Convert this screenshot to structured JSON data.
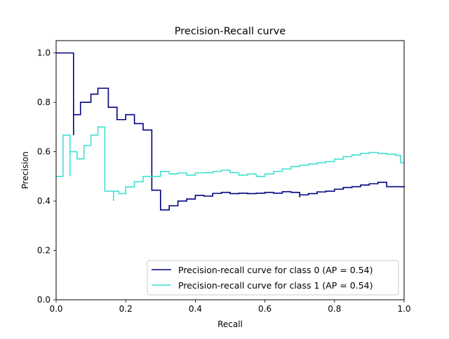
{
  "chart_data": {
    "type": "line",
    "step": "post",
    "title": "Precision-Recall curve",
    "xlabel": "Recall",
    "ylabel": "Precision",
    "xlim": [
      0.0,
      1.0
    ],
    "ylim": [
      0.0,
      1.05
    ],
    "xticks": [
      "0.0",
      "0.2",
      "0.4",
      "0.6",
      "0.8",
      "1.0"
    ],
    "yticks": [
      "0.0",
      "0.2",
      "0.4",
      "0.6",
      "0.8",
      "1.0"
    ],
    "grid": false,
    "legend_position": "lower-right",
    "series": [
      {
        "name": "Precision-recall curve for class 0 (AP = 0.54)",
        "color": "#000080",
        "recall": [
          0.0,
          0.05,
          0.05,
          0.07,
          0.1,
          0.12,
          0.145,
          0.15,
          0.175,
          0.2,
          0.225,
          0.25,
          0.275,
          0.275,
          0.3,
          0.3,
          0.325,
          0.35,
          0.375,
          0.4,
          0.425,
          0.45,
          0.475,
          0.5,
          0.525,
          0.55,
          0.575,
          0.6,
          0.625,
          0.65,
          0.675,
          0.7,
          0.7,
          0.725,
          0.75,
          0.775,
          0.8,
          0.825,
          0.85,
          0.875,
          0.9,
          0.925,
          0.95,
          0.975,
          1.0
        ],
        "precision": [
          1.0,
          0.667,
          0.75,
          0.8,
          0.833,
          0.857,
          0.857,
          0.78,
          0.73,
          0.75,
          0.714,
          0.688,
          0.688,
          0.444,
          0.444,
          0.364,
          0.381,
          0.4,
          0.408,
          0.423,
          0.42,
          0.431,
          0.435,
          0.43,
          0.432,
          0.43,
          0.432,
          0.435,
          0.432,
          0.438,
          0.435,
          0.415,
          0.425,
          0.43,
          0.437,
          0.44,
          0.448,
          0.455,
          0.458,
          0.465,
          0.47,
          0.476,
          0.458,
          0.458,
          0.455
        ]
      },
      {
        "name": "Precision-recall curve for class 1 (AP = 0.54)",
        "color": "#40E0D0",
        "recall": [
          0.0,
          0.02,
          0.04,
          0.04,
          0.06,
          0.08,
          0.1,
          0.12,
          0.14,
          0.14,
          0.165,
          0.165,
          0.18,
          0.2,
          0.225,
          0.25,
          0.275,
          0.3,
          0.325,
          0.35,
          0.375,
          0.4,
          0.425,
          0.45,
          0.475,
          0.5,
          0.525,
          0.55,
          0.575,
          0.6,
          0.625,
          0.65,
          0.675,
          0.7,
          0.725,
          0.75,
          0.775,
          0.8,
          0.825,
          0.85,
          0.875,
          0.9,
          0.925,
          0.95,
          0.975,
          0.99,
          1.0
        ],
        "precision": [
          0.5,
          0.667,
          0.5,
          0.6,
          0.571,
          0.625,
          0.667,
          0.7,
          0.7,
          0.44,
          0.4,
          0.44,
          0.43,
          0.457,
          0.478,
          0.5,
          0.5,
          0.52,
          0.51,
          0.514,
          0.505,
          0.514,
          0.515,
          0.52,
          0.525,
          0.515,
          0.505,
          0.51,
          0.5,
          0.51,
          0.52,
          0.53,
          0.54,
          0.545,
          0.55,
          0.555,
          0.56,
          0.57,
          0.58,
          0.587,
          0.593,
          0.597,
          0.593,
          0.59,
          0.585,
          0.555,
          0.555
        ]
      }
    ]
  }
}
